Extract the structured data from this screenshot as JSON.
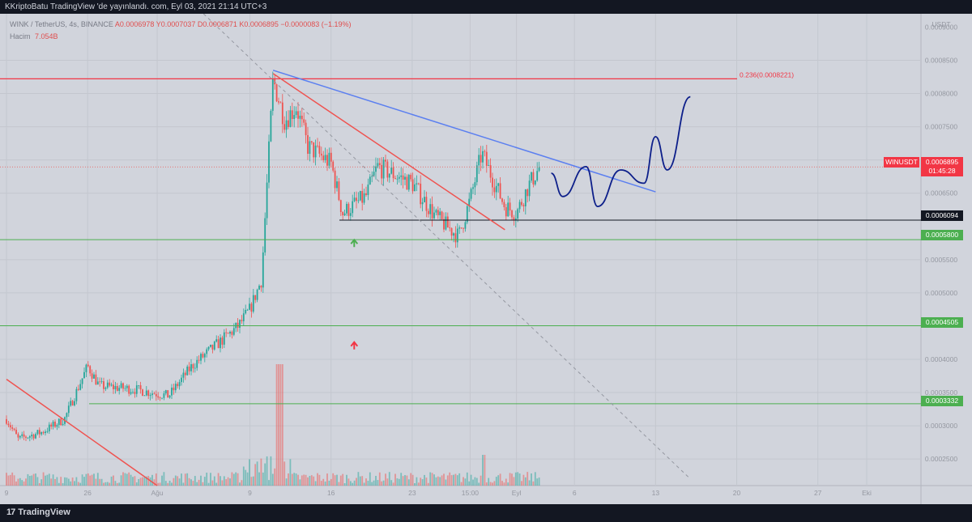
{
  "header": {
    "title": "KKriptoBatu TradingView 'de yayınlandı. com, Eyl 03, 2021 21:14 UTC+3"
  },
  "legend": {
    "symbol": "WINK / TetherUS, 4s, BINANCE",
    "ohlc": "A0.0006978  Y0.0007037  D0.0006871  K0.0006895  −0.0000083 (−1.19%)",
    "volume_label": "Hacim",
    "volume_value": "7.054B"
  },
  "price_axis": {
    "currency": "USDT",
    "ticks": [
      "0.0008500",
      "0.0008000",
      "0.0007500",
      "0.0007000",
      "0.0006500",
      "0.0005500",
      "0.0005000",
      "0.0004000",
      "0.0003500",
      "0.0003000",
      "0.0002500"
    ],
    "top_tick_partial": "0.0009000"
  },
  "time_axis": {
    "ticks": [
      "9",
      "26",
      "Ağu",
      "9",
      "16",
      "23",
      "15:00",
      "Eyl",
      "6",
      "13",
      "20",
      "27",
      "Eki"
    ]
  },
  "levels": [
    {
      "price": 0.0006094,
      "label": "0.0006094",
      "color": "#131722"
    },
    {
      "price": 0.00058,
      "label": "0.0005800",
      "color": "#4caf50"
    },
    {
      "price": 0.0004505,
      "label": "0.0004505",
      "color": "#4caf50"
    },
    {
      "price": 0.0003332,
      "label": "0.0003332",
      "color": "#4caf50"
    }
  ],
  "fib": {
    "label": "0.236(0.0008221)",
    "price": 0.0008221,
    "color": "#f23645"
  },
  "current": {
    "symbol": "WINUSDT",
    "price": "0.0006895",
    "countdown": "01:45:28",
    "color": "#f23645"
  },
  "footer": {
    "brand": "TradingView"
  },
  "chart_data": {
    "type": "candlestick",
    "symbol": "WINK / TetherUS",
    "interval": "4s",
    "exchange": "BINANCE",
    "y_scale": "price",
    "ylim": [
      0.00021,
      0.00092
    ],
    "series": [
      {
        "name": "price path (approx.)",
        "points": [
          [
            "Jul 19",
            0.00031
          ],
          [
            "Jul 20",
            0.00028
          ],
          [
            "Jul 22",
            0.00029
          ],
          [
            "Jul 24",
            0.00031
          ],
          [
            "Jul 26",
            0.00039
          ],
          [
            "Jul 27",
            0.00036
          ],
          [
            "Jul 30",
            0.000355
          ],
          [
            "Aug 2",
            0.000345
          ],
          [
            "Aug 4",
            0.00039
          ],
          [
            "Aug 6",
            0.00042
          ],
          [
            "Aug 8",
            0.00045
          ],
          [
            "Aug 9",
            0.000475
          ],
          [
            "Aug 10",
            0.00052
          ],
          [
            "Aug 11",
            0.000821
          ],
          [
            "Aug 12",
            0.00076
          ],
          [
            "Aug 13",
            0.00078
          ],
          [
            "Aug 14",
            0.00072
          ],
          [
            "Aug 16",
            0.000695
          ],
          [
            "Aug 17",
            0.00062
          ],
          [
            "Aug 19",
            0.000645
          ],
          [
            "Aug 20",
            0.00069
          ],
          [
            "Aug 23",
            0.000665
          ],
          [
            "Aug 25",
            0.000615
          ],
          [
            "Aug 27",
            0.000585
          ],
          [
            "Aug 28",
            0.00064
          ],
          [
            "Aug 29",
            0.00071
          ],
          [
            "Aug 31",
            0.00063
          ],
          [
            "Sep 1",
            0.00062
          ],
          [
            "Sep 2",
            0.00066
          ],
          [
            "Sep 3",
            0.0006895
          ]
        ]
      }
    ],
    "projection": {
      "name": "projected path (hand drawn)",
      "points": [
        [
          "Sep 4",
          0.00068
        ],
        [
          "Sep 5",
          0.000645
        ],
        [
          "Sep 7",
          0.00069
        ],
        [
          "Sep 8",
          0.00063
        ],
        [
          "Sep 10",
          0.000685
        ],
        [
          "Sep 12",
          0.000665
        ],
        [
          "Sep 13",
          0.000735
        ],
        [
          "Sep 14",
          0.000685
        ],
        [
          "Sep 16",
          0.000795
        ]
      ]
    },
    "volume_series": {
      "name": "Hacim",
      "last": "7.054B"
    },
    "horizontal_levels": [
      0.0006094,
      0.00058,
      0.0004505,
      0.0003332,
      0.0008221
    ],
    "trendlines": [
      {
        "name": "descending resistance (blue)",
        "from": [
          "Aug 11",
          0.000835
        ],
        "to": [
          "Sep 13",
          0.000652
        ]
      },
      {
        "name": "broken downtrend (red)",
        "from": [
          "Aug 11",
          0.00083
        ],
        "to": [
          "Aug 31",
          0.000595
        ]
      },
      {
        "name": "old downtrend (red)",
        "from": [
          "Jul 19",
          0.00037
        ],
        "to": [
          "Aug 1",
          0.00021
        ]
      },
      {
        "name": "diagonal (dashed grey)",
        "from": [
          "Aug 5",
          0.00092
        ],
        "to": [
          "Sep 16",
          0.00022
        ]
      }
    ],
    "markers": [
      {
        "type": "arrow-up",
        "color": "#4caf50",
        "at": [
          "Aug 18",
          0.000575
        ]
      },
      {
        "type": "arrow-up",
        "color": "#f23645",
        "at": [
          "Aug 18",
          0.000421
        ]
      }
    ],
    "grid": true
  },
  "colors": {
    "background": "#d1d4dc",
    "up": "#26a69a",
    "down": "#ef5350",
    "bg_dark": "#131722"
  }
}
